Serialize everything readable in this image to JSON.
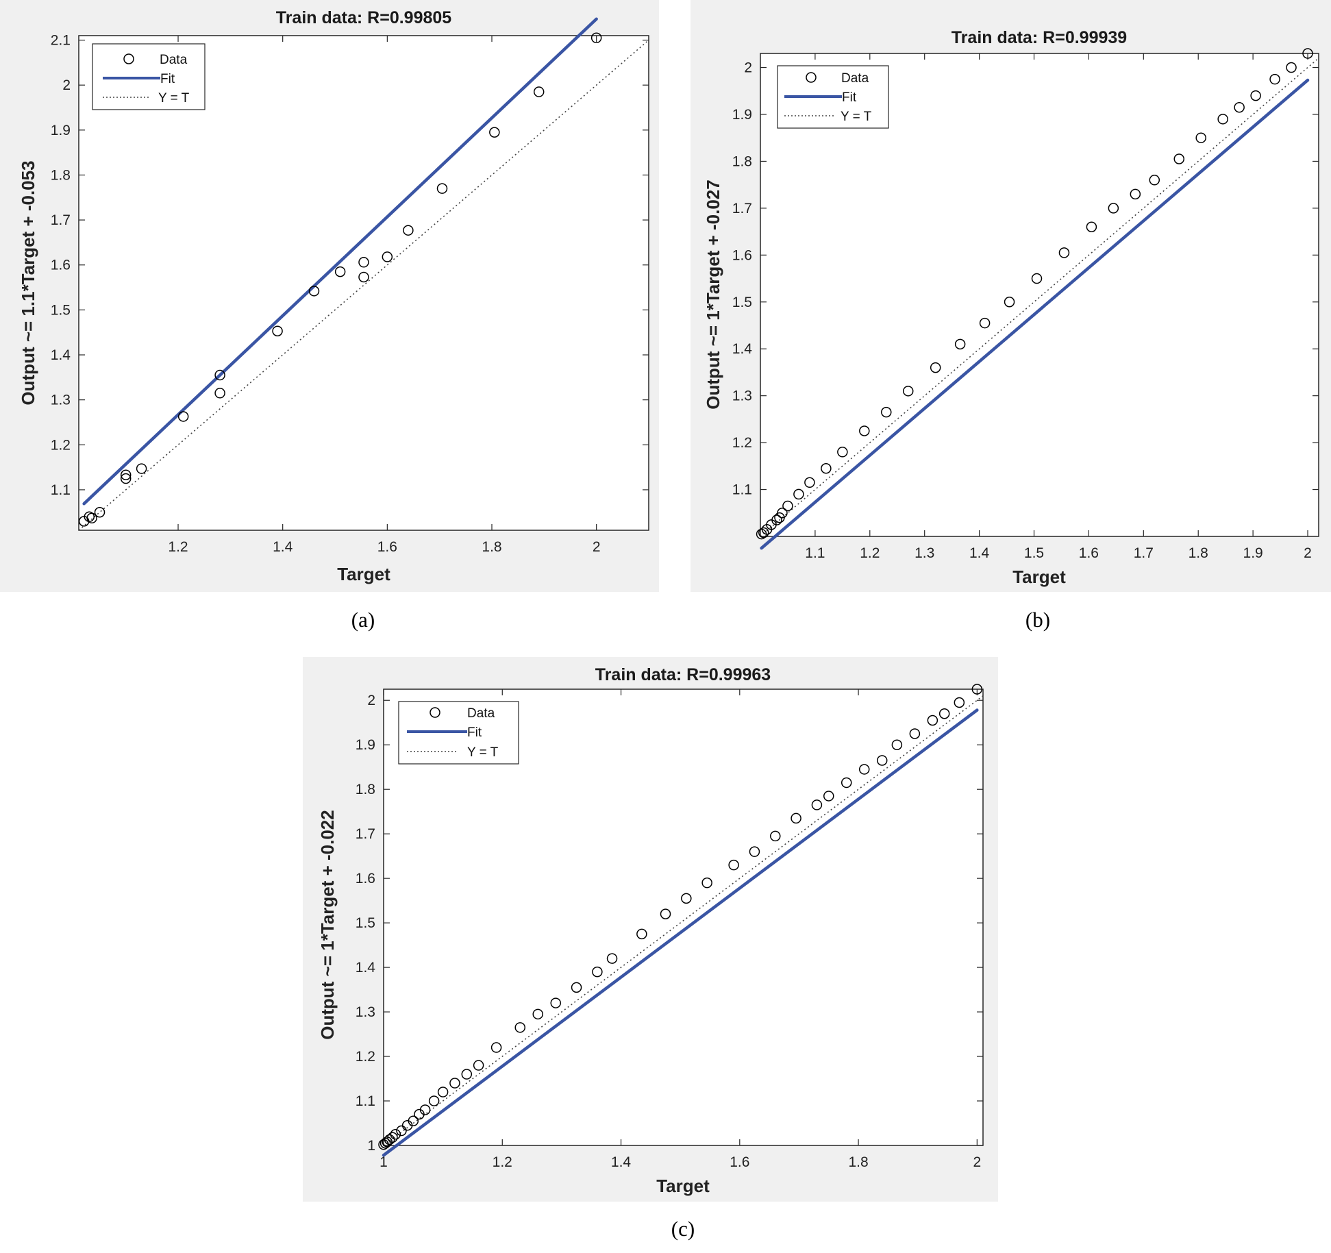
{
  "captions": [
    "(a)",
    "(b)",
    "(c)"
  ],
  "colors": {
    "panel_bg": "#f0f0f0",
    "fit_line": "#3a55a4",
    "marker": "#000000",
    "identity_line": "#444444",
    "axes_bg": "#ffffff"
  },
  "legend": {
    "data_label": "Data",
    "fit_label": "Fit",
    "identity_label": "Y = T"
  },
  "chart_data": [
    {
      "type": "scatter",
      "title": "Train data: R=0.99805",
      "xlabel": "Target",
      "ylabel": "Output ~= 1.1*Target + -0.053",
      "xlim": [
        1.01,
        2.1
      ],
      "ylim": [
        1.01,
        2.11
      ],
      "xticks": [
        1.2,
        1.4,
        1.6,
        1.8,
        2
      ],
      "yticks": [
        1.1,
        1.2,
        1.3,
        1.4,
        1.5,
        1.6,
        1.7,
        1.8,
        1.9,
        2,
        2.1
      ],
      "legend_position": "top-left",
      "grid": false,
      "fit": {
        "slope": 1.1,
        "intercept": -0.053
      },
      "points": [
        [
          1.02,
          1.03
        ],
        [
          1.03,
          1.04
        ],
        [
          1.035,
          1.037
        ],
        [
          1.05,
          1.05
        ],
        [
          1.1,
          1.125
        ],
        [
          1.1,
          1.133
        ],
        [
          1.13,
          1.147
        ],
        [
          1.21,
          1.263
        ],
        [
          1.28,
          1.355
        ],
        [
          1.28,
          1.315
        ],
        [
          1.39,
          1.453
        ],
        [
          1.46,
          1.542
        ],
        [
          1.51,
          1.585
        ],
        [
          1.555,
          1.606
        ],
        [
          1.555,
          1.573
        ],
        [
          1.6,
          1.618
        ],
        [
          1.64,
          1.677
        ],
        [
          1.705,
          1.77
        ],
        [
          1.805,
          1.895
        ],
        [
          1.89,
          1.985
        ],
        [
          2.0,
          2.105
        ]
      ]
    },
    {
      "type": "scatter",
      "title": "Train data: R=0.99939",
      "xlabel": "Target",
      "ylabel": "Output ~= 1*Target + -0.027",
      "xlim": [
        1.0,
        2.02
      ],
      "ylim": [
        1.0,
        2.03
      ],
      "xticks": [
        1.1,
        1.2,
        1.3,
        1.4,
        1.5,
        1.6,
        1.7,
        1.8,
        1.9,
        2
      ],
      "yticks": [
        1.1,
        1.2,
        1.3,
        1.4,
        1.5,
        1.6,
        1.7,
        1.8,
        1.9,
        2
      ],
      "legend_position": "top-left",
      "grid": false,
      "fit": {
        "slope": 1.0,
        "intercept": -0.027
      },
      "points": [
        [
          1.002,
          1.005
        ],
        [
          1.006,
          1.008
        ],
        [
          1.012,
          1.015
        ],
        [
          1.02,
          1.025
        ],
        [
          1.03,
          1.035
        ],
        [
          1.035,
          1.04
        ],
        [
          1.04,
          1.05
        ],
        [
          1.05,
          1.065
        ],
        [
          1.07,
          1.09
        ],
        [
          1.09,
          1.115
        ],
        [
          1.12,
          1.145
        ],
        [
          1.15,
          1.18
        ],
        [
          1.19,
          1.225
        ],
        [
          1.23,
          1.265
        ],
        [
          1.27,
          1.31
        ],
        [
          1.32,
          1.36
        ],
        [
          1.365,
          1.41
        ],
        [
          1.41,
          1.455
        ],
        [
          1.455,
          1.5
        ],
        [
          1.505,
          1.55
        ],
        [
          1.555,
          1.605
        ],
        [
          1.605,
          1.66
        ],
        [
          1.645,
          1.7
        ],
        [
          1.685,
          1.73
        ],
        [
          1.72,
          1.76
        ],
        [
          1.765,
          1.805
        ],
        [
          1.805,
          1.85
        ],
        [
          1.845,
          1.89
        ],
        [
          1.875,
          1.915
        ],
        [
          1.905,
          1.94
        ],
        [
          1.94,
          1.975
        ],
        [
          1.97,
          2.0
        ],
        [
          2.0,
          2.03
        ]
      ]
    },
    {
      "type": "scatter",
      "title": "Train data: R=0.99963",
      "xlabel": "Target",
      "ylabel": "Output ~= 1*Target + -0.022",
      "xlim": [
        1.0,
        2.01
      ],
      "ylim": [
        1.0,
        2.025
      ],
      "xticks": [
        1,
        1.2,
        1.4,
        1.6,
        1.8,
        2
      ],
      "yticks": [
        1,
        1.1,
        1.2,
        1.3,
        1.4,
        1.5,
        1.6,
        1.7,
        1.8,
        1.9,
        2
      ],
      "legend_position": "top-left",
      "grid": false,
      "fit": {
        "slope": 1.0,
        "intercept": -0.022
      },
      "points": [
        [
          1.0,
          1.002
        ],
        [
          1.003,
          1.005
        ],
        [
          1.006,
          1.008
        ],
        [
          1.01,
          1.013
        ],
        [
          1.015,
          1.018
        ],
        [
          1.02,
          1.025
        ],
        [
          1.03,
          1.033
        ],
        [
          1.04,
          1.045
        ],
        [
          1.05,
          1.055
        ],
        [
          1.06,
          1.07
        ],
        [
          1.07,
          1.08
        ],
        [
          1.085,
          1.1
        ],
        [
          1.1,
          1.12
        ],
        [
          1.12,
          1.14
        ],
        [
          1.14,
          1.16
        ],
        [
          1.16,
          1.18
        ],
        [
          1.19,
          1.22
        ],
        [
          1.23,
          1.265
        ],
        [
          1.26,
          1.295
        ],
        [
          1.29,
          1.32
        ],
        [
          1.325,
          1.355
        ],
        [
          1.36,
          1.39
        ],
        [
          1.385,
          1.42
        ],
        [
          1.435,
          1.475
        ],
        [
          1.475,
          1.52
        ],
        [
          1.51,
          1.555
        ],
        [
          1.545,
          1.59
        ],
        [
          1.59,
          1.63
        ],
        [
          1.625,
          1.66
        ],
        [
          1.66,
          1.695
        ],
        [
          1.695,
          1.735
        ],
        [
          1.73,
          1.765
        ],
        [
          1.75,
          1.785
        ],
        [
          1.78,
          1.815
        ],
        [
          1.81,
          1.845
        ],
        [
          1.84,
          1.865
        ],
        [
          1.865,
          1.9
        ],
        [
          1.895,
          1.925
        ],
        [
          1.925,
          1.955
        ],
        [
          1.945,
          1.97
        ],
        [
          1.97,
          1.995
        ],
        [
          2.0,
          2.025
        ]
      ]
    }
  ]
}
